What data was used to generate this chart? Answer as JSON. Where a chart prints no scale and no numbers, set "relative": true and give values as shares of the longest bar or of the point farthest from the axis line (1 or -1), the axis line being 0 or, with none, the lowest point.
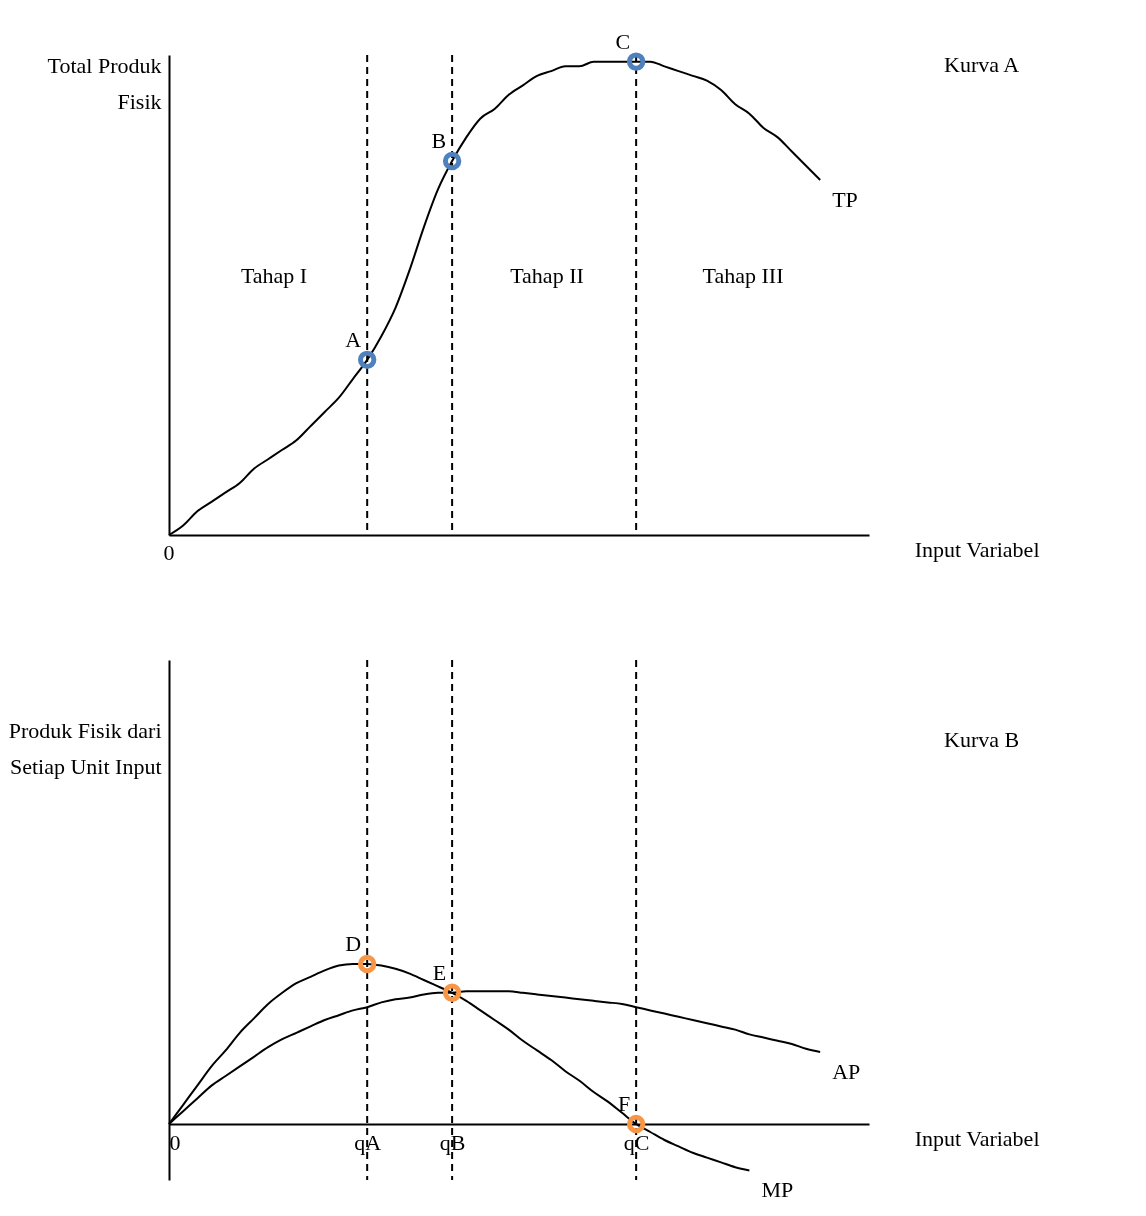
{
  "chart_data": [
    {
      "type": "line",
      "relative": true,
      "ylabel": "Total Produk Fisik",
      "xlabel": "Input Variabel",
      "tick_labels": false,
      "categories": [
        "0",
        null,
        null,
        null,
        null,
        null,
        null,
        null,
        null,
        null,
        null,
        null,
        null,
        null,
        "qA",
        null,
        null,
        null,
        null,
        null,
        "qB",
        null,
        null,
        null,
        null,
        null,
        null,
        null,
        null,
        null,
        null,
        null,
        null,
        "qC",
        null,
        null,
        null,
        null,
        null,
        null,
        null,
        null,
        null,
        null,
        null,
        null,
        null
      ],
      "series": [
        {
          "name": "TP",
          "color": "#000000",
          "values": [
            0,
            0.02,
            0.05,
            0.07,
            0.09,
            0.11,
            0.14,
            0.16,
            0.18,
            0.2,
            0.23,
            0.26,
            0.29,
            0.33,
            0.37,
            0.42,
            0.48,
            0.56,
            0.65,
            0.73,
            0.79,
            0.84,
            0.88,
            0.9,
            0.93,
            0.95,
            0.97,
            0.98,
            0.99,
            0.99,
            1,
            1,
            1,
            1,
            1,
            0.99,
            0.98,
            0.97,
            0.96,
            0.94,
            0.91,
            0.89,
            0.86,
            0.84,
            0.81,
            0.78,
            0.75
          ]
        },
        {
          "type": "scatter",
          "marker": "circle",
          "color": "#4f81bd",
          "values": [
            null,
            null,
            null,
            null,
            null,
            null,
            null,
            null,
            null,
            null,
            null,
            null,
            null,
            null,
            0.37,
            null,
            null,
            null,
            null,
            null,
            0.79,
            null,
            null,
            null,
            null,
            null,
            null,
            null,
            null,
            null,
            null,
            null,
            null,
            1,
            null,
            null,
            null,
            null,
            null,
            null,
            null,
            null,
            null,
            null,
            null,
            null,
            null
          ]
        }
      ],
      "ref_lines": [
        {
          "axis": "x",
          "value": "qA",
          "line_style": "dashed"
        },
        {
          "axis": "x",
          "value": "qB",
          "line_style": "dashed"
        },
        {
          "axis": "x",
          "value": "qC",
          "line_style": "dashed"
        }
      ],
      "annotations": [
        "Kurva A",
        "Tahap I",
        "Tahap II",
        "Tahap III",
        {
          "text": "0",
          "x": "0",
          "y": 0
        },
        {
          "text": "A",
          "x": "qA",
          "y": 0.37
        },
        {
          "text": "B",
          "x": "qB",
          "y": 0.79
        },
        {
          "text": "C",
          "x": "qC",
          "y": 1
        }
      ]
    },
    {
      "type": "line",
      "relative": true,
      "ylabel": "Produk Fisik dari Setiap Unit Input",
      "xlabel": "Input Variabel",
      "categories": [
        "0",
        null,
        null,
        null,
        null,
        null,
        null,
        null,
        null,
        null,
        null,
        null,
        null,
        null,
        "qA",
        null,
        null,
        null,
        null,
        null,
        "qB",
        null,
        null,
        null,
        null,
        null,
        null,
        null,
        null,
        null,
        null,
        null,
        null,
        "qC",
        null,
        null,
        null,
        null,
        null,
        null,
        null,
        null,
        null,
        null,
        null,
        null,
        null
      ],
      "series": [
        {
          "name": "MP",
          "color": "#000000",
          "values": [
            0,
            0.12,
            0.24,
            0.36,
            0.46,
            0.57,
            0.66,
            0.75,
            0.82,
            0.88,
            0.92,
            0.96,
            0.99,
            1,
            1,
            0.99,
            0.97,
            0.94,
            0.9,
            0.86,
            0.82,
            0.77,
            0.71,
            0.65,
            0.59,
            0.52,
            0.46,
            0.4,
            0.33,
            0.27,
            0.2,
            0.14,
            0.07,
            0,
            -0.05,
            -0.1,
            -0.14,
            -0.18,
            -0.21,
            -0.24,
            -0.27,
            -0.29,
            null,
            null,
            null,
            null,
            null
          ]
        },
        {
          "name": "AP",
          "color": "#000000",
          "values": [
            0,
            0.08,
            0.16,
            0.24,
            0.3,
            0.36,
            0.42,
            0.48,
            0.53,
            0.57,
            0.61,
            0.65,
            0.68,
            0.71,
            0.73,
            0.76,
            0.78,
            0.79,
            0.81,
            0.82,
            0.82,
            0.83,
            0.83,
            0.83,
            0.83,
            0.82,
            0.81,
            0.8,
            0.79,
            0.78,
            0.77,
            0.76,
            0.75,
            0.73,
            0.71,
            0.69,
            0.67,
            0.65,
            0.63,
            0.61,
            0.59,
            0.56,
            0.54,
            0.52,
            0.5,
            0.47,
            0.45
          ]
        },
        {
          "type": "scatter",
          "marker": "circle",
          "color": "#f79646",
          "values": [
            null,
            null,
            null,
            null,
            null,
            null,
            null,
            null,
            null,
            null,
            null,
            null,
            null,
            null,
            1,
            null,
            null,
            null,
            null,
            null,
            0.82,
            null,
            null,
            null,
            null,
            null,
            null,
            null,
            null,
            null,
            null,
            null,
            null,
            0,
            null,
            null,
            null,
            null,
            null,
            null,
            null,
            null,
            null,
            null,
            null,
            null,
            null
          ]
        }
      ],
      "ref_lines": [
        {
          "axis": "x",
          "value": "qA",
          "line_style": "dashed"
        },
        {
          "axis": "x",
          "value": "qB",
          "line_style": "dashed"
        },
        {
          "axis": "x",
          "value": "qC",
          "line_style": "dashed"
        }
      ],
      "annotations": [
        "Kurva B",
        {
          "text": "D",
          "x": "qA",
          "y": 1
        },
        {
          "text": "E",
          "x": "qB",
          "y": 0.82
        },
        {
          "text": "F",
          "x": "qC",
          "y": 0
        }
      ]
    }
  ]
}
